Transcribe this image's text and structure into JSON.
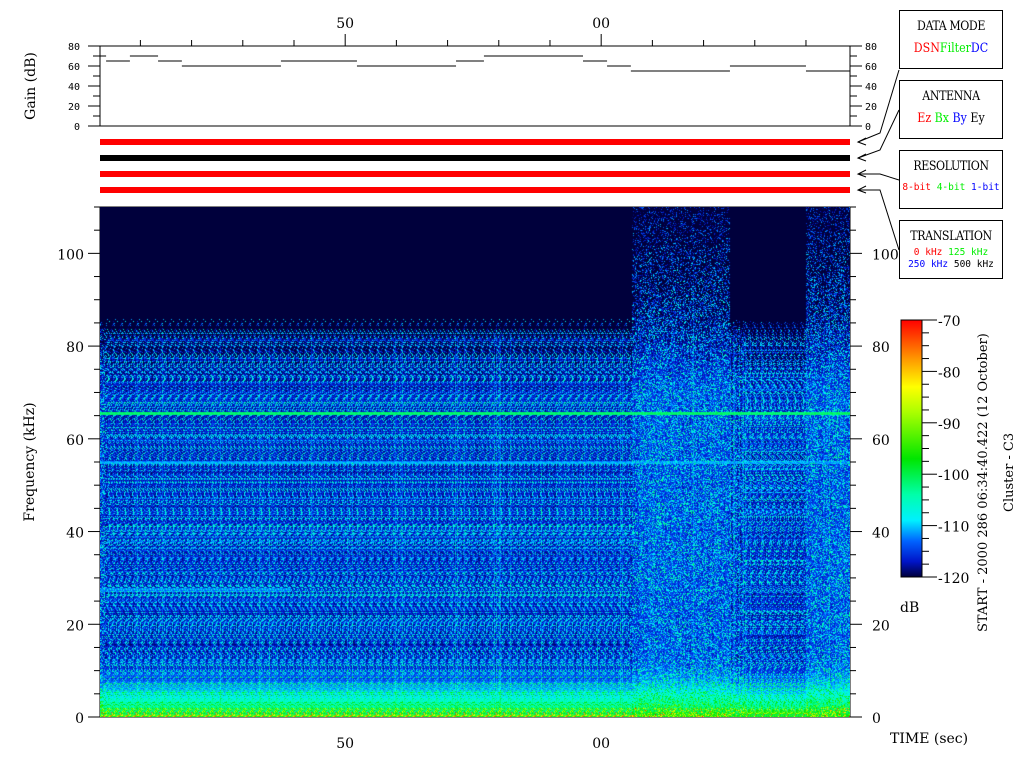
{
  "chart_data": [
    {
      "type": "line",
      "name": "gain-panel",
      "ylabel": "Gain (dB)",
      "ylim": [
        0,
        80
      ],
      "yticks": [
        "0",
        "20",
        "40",
        "60",
        "80"
      ],
      "xlim": [
        40.422,
        69.72
      ],
      "xtick_labels": [
        {
          "t": 50,
          "label": "50"
        },
        {
          "t": 60,
          "label": "00"
        }
      ],
      "segments": [
        [
          40.42,
          40.66,
          70
        ],
        [
          40.66,
          41.59,
          65
        ],
        [
          41.59,
          42.69,
          70
        ],
        [
          42.69,
          43.62,
          65
        ],
        [
          43.62,
          47.49,
          60
        ],
        [
          47.49,
          50.46,
          65
        ],
        [
          50.46,
          54.33,
          60
        ],
        [
          54.33,
          55.42,
          65
        ],
        [
          55.42,
          59.29,
          70
        ],
        [
          59.29,
          60.23,
          65
        ],
        [
          60.23,
          61.16,
          60
        ],
        [
          61.16,
          65.03,
          55
        ],
        [
          65.03,
          68.0,
          60
        ],
        [
          68.0,
          69.72,
          55
        ]
      ]
    },
    {
      "type": "heatmap",
      "ylabel": "Frequency (kHz)",
      "xlabel": "TIME (sec)",
      "ylim": [
        0,
        110
      ],
      "yticks": [
        "0",
        "20",
        "40",
        "60",
        "80",
        "100"
      ],
      "xlim": [
        40.422,
        69.72
      ],
      "xtick_labels": [
        {
          "t": 50,
          "label": "50"
        },
        {
          "t": 60,
          "label": "00"
        }
      ],
      "colorbar": {
        "label": "dB",
        "range": [
          -120,
          -70
        ],
        "ticks": [
          "-70",
          "-80",
          "-90",
          "-100",
          "-110",
          "-120"
        ]
      },
      "bandwidth_kHz": [
        {
          "from": 40.42,
          "to": 61.2,
          "max": 82
        },
        {
          "from": 61.2,
          "to": 65.0,
          "max": 110
        },
        {
          "from": 65.0,
          "to": 68.0,
          "max": 82
        },
        {
          "from": 68.0,
          "to": 69.72,
          "max": 110
        }
      ],
      "narrowband_lines_kHz": [
        {
          "f": 65.5,
          "level_dB": -100
        },
        {
          "f": 55,
          "level_dB": -110
        },
        {
          "f": 27.5,
          "level_dB": -111
        }
      ]
    }
  ],
  "status_bars": [
    {
      "label": "DATA MODE",
      "color": "#ff0000"
    },
    {
      "label": "ANTENNA",
      "color": "#000000"
    },
    {
      "label": "RESOLUTION",
      "color": "#ff0000"
    },
    {
      "label": "TRANSLATION",
      "color": "#ff0000"
    }
  ],
  "legend": {
    "data_mode": {
      "title": "DATA MODE",
      "items": [
        {
          "text": "DSN",
          "color": "#ff0000"
        },
        {
          "text": "Filter",
          "color": "#00ee00"
        },
        {
          "text": "DC",
          "color": "#0000ff"
        }
      ]
    },
    "antenna": {
      "title": "ANTENNA",
      "items": [
        {
          "text": "Ez",
          "color": "#ff0000"
        },
        {
          "text": "Bx",
          "color": "#00ee00"
        },
        {
          "text": "By",
          "color": "#0000ff"
        },
        {
          "text": "Ey",
          "color": "#000000"
        }
      ]
    },
    "resolution": {
      "title": "RESOLUTION",
      "items": [
        {
          "text": "8-bit",
          "color": "#ff0000"
        },
        {
          "text": "4-bit",
          "color": "#00ee00"
        },
        {
          "text": "1-bit",
          "color": "#0000ff"
        }
      ]
    },
    "translation": {
      "title": "TRANSLATION",
      "items": [
        {
          "text": "0 kHz",
          "color": "#ff0000"
        },
        {
          "text": "125 kHz",
          "color": "#00ee00"
        },
        {
          "text": "250 kHz",
          "color": "#0000ff"
        },
        {
          "text": "500 kHz",
          "color": "#000000"
        }
      ]
    }
  },
  "start_label": "START - 2000 286 06:34:40.422 (12 October)",
  "spacecraft_label": "Cluster - C3"
}
